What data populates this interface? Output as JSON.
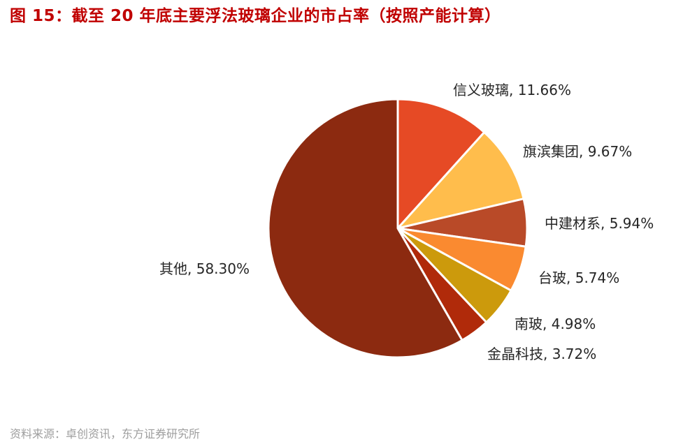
{
  "header": {
    "title": "图 15：截至 20 年底主要浮法玻璃企业的市占率（按照产能计算）"
  },
  "footer": {
    "source": "资料来源：卓创资讯，东方证券研究所"
  },
  "chart_data": {
    "type": "pie",
    "title": "图 15：截至 20 年底主要浮法玻璃企业的市占率（按照产能计算）",
    "start_angle": "12 o'clock",
    "direction": "clockwise",
    "legend": "none (labels beside slices)",
    "slices": [
      {
        "name": "信义玻璃",
        "value": 11.66,
        "label": "信义玻璃, 11.66%",
        "color": "#e64a25"
      },
      {
        "name": "旗滨集团",
        "value": 9.67,
        "label": "旗滨集团, 9.67%",
        "color": "#ffbd4c"
      },
      {
        "name": "中建材系",
        "value": 5.94,
        "label": "中建材系, 5.94%",
        "color": "#b94a28"
      },
      {
        "name": "台玻",
        "value": 5.74,
        "label": "台玻, 5.74%",
        "color": "#fa8a30"
      },
      {
        "name": "南玻",
        "value": 4.98,
        "label": "南玻, 4.98%",
        "color": "#cc9a0c"
      },
      {
        "name": "金晶科技",
        "value": 3.72,
        "label": "金晶科技, 3.72%",
        "color": "#b02a0a"
      },
      {
        "name": "其他",
        "value": 58.3,
        "label": "其他, 58.30%",
        "color": "#8c2a10"
      }
    ]
  }
}
